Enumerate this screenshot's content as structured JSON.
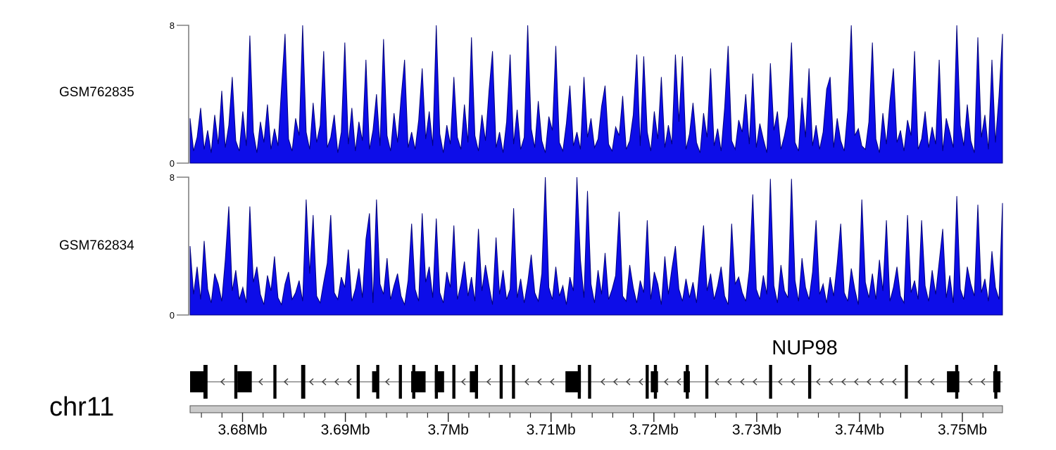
{
  "figure": {
    "chromosome_label": "chr11",
    "gene_label": "NUP98"
  },
  "colors": {
    "signal_fill": "#0d0de8",
    "signal_stroke": "#00007d",
    "axis_line": "#808080",
    "tick_text": "#000000",
    "gene_line": "#888888",
    "arrow": "#3a3a3a",
    "exon": "#000000",
    "ruler_fill": "#cbcbcb",
    "ruler_border": "#555555"
  },
  "axis_mb": {
    "start": 3.6749,
    "end": 3.7539
  },
  "chart_data": [
    {
      "type": "area",
      "series_label": "GSM762835",
      "ylim": [
        0,
        8
      ],
      "ytick_top": "8",
      "ytick_bottom": "0",
      "x_range_mb": [
        3.6749,
        3.7539
      ],
      "values": [
        2.6,
        0.7,
        1.5,
        3.2,
        0.8,
        1.9,
        0.6,
        2.8,
        1.1,
        4.2,
        0.9,
        2.2,
        5.0,
        1.3,
        0.7,
        3.0,
        1.0,
        7.4,
        1.8,
        0.6,
        2.4,
        1.2,
        3.4,
        0.8,
        2.0,
        1.0,
        4.4,
        7.5,
        1.4,
        0.7,
        2.6,
        1.6,
        8.0,
        1.8,
        0.8,
        3.5,
        1.2,
        2.2,
        6.5,
        0.9,
        1.5,
        2.8,
        0.6,
        1.8,
        7.0,
        1.1,
        3.2,
        0.7,
        2.4,
        1.3,
        6.0,
        0.8,
        1.9,
        4.0,
        1.0,
        7.2,
        1.6,
        0.7,
        2.9,
        1.2,
        3.8,
        6.0,
        0.9,
        1.8,
        0.8,
        2.5,
        5.5,
        1.4,
        3.0,
        1.0,
        8.0,
        1.7,
        0.6,
        2.2,
        1.1,
        5.0,
        1.5,
        0.8,
        3.4,
        1.2,
        7.3,
        1.6,
        0.7,
        2.8,
        1.3,
        4.2,
        6.5,
        0.9,
        1.8,
        0.6,
        2.4,
        6.3,
        1.1,
        3.1,
        0.8,
        1.5,
        8.0,
        2.0,
        0.9,
        3.6,
        1.3,
        0.6,
        2.7,
        1.9,
        6.8,
        1.2,
        0.7,
        2.3,
        4.5,
        1.0,
        1.8,
        0.8,
        5.0,
        1.5,
        2.6,
        0.9,
        1.4,
        3.3,
        4.5,
        1.1,
        0.7,
        2.1,
        1.6,
        3.9,
        0.8,
        1.3,
        2.8,
        6.3,
        1.0,
        6.2,
        1.8,
        0.7,
        3.0,
        1.4,
        5.0,
        0.9,
        2.2,
        1.1,
        6.3,
        2.4,
        6.2,
        0.8,
        1.7,
        3.5,
        1.2,
        0.6,
        2.9,
        1.5,
        5.5,
        1.0,
        2.0,
        0.7,
        3.2,
        6.8,
        1.3,
        0.8,
        2.5,
        1.8,
        4.0,
        1.1,
        5.2,
        0.9,
        2.3,
        1.4,
        0.6,
        5.8,
        1.9,
        3.0,
        0.8,
        1.6,
        2.7,
        7.0,
        1.2,
        0.7,
        3.8,
        1.5,
        5.5,
        1.0,
        2.2,
        0.8,
        1.8,
        4.3,
        5.0,
        0.9,
        2.6,
        1.3,
        0.7,
        3.1,
        8.0,
        1.6,
        2.0,
        1.0,
        0.8,
        2.4,
        7.0,
        1.4,
        0.6,
        2.9,
        1.1,
        3.6,
        5.5,
        1.2,
        1.9,
        0.7,
        2.5,
        1.6,
        6.5,
        0.8,
        1.4,
        3.0,
        0.9,
        2.1,
        1.1,
        6.0,
        0.7,
        2.6,
        1.8,
        0.9,
        8.0,
        2.2,
        1.0,
        3.4,
        1.3,
        0.6,
        7.3,
        1.5,
        2.8,
        0.8,
        6.0,
        1.2,
        3.9,
        7.5
      ]
    },
    {
      "type": "area",
      "series_label": "GSM762834",
      "ylim": [
        0,
        8
      ],
      "ytick_top": "8",
      "ytick_bottom": "0",
      "x_range_mb": [
        3.6749,
        3.7539
      ],
      "values": [
        4.0,
        1.2,
        2.8,
        0.9,
        4.3,
        1.5,
        0.7,
        2.4,
        1.8,
        0.8,
        3.2,
        6.3,
        1.4,
        2.6,
        0.9,
        1.6,
        0.7,
        6.3,
        1.9,
        2.8,
        1.2,
        0.6,
        2.3,
        1.4,
        3.4,
        1.0,
        0.6,
        1.8,
        2.5,
        0.9,
        1.3,
        2.0,
        0.8,
        6.7,
        2.4,
        5.8,
        1.1,
        0.7,
        1.9,
        3.0,
        5.8,
        1.3,
        0.9,
        2.2,
        1.6,
        3.8,
        0.8,
        1.5,
        2.7,
        1.0,
        4.4,
        5.9,
        0.7,
        6.7,
        1.8,
        1.2,
        3.3,
        0.9,
        1.7,
        2.4,
        1.1,
        0.6,
        2.0,
        5.3,
        1.5,
        0.8,
        5.9,
        1.9,
        2.8,
        1.0,
        5.6,
        1.3,
        0.7,
        2.5,
        1.6,
        5.2,
        0.9,
        1.8,
        3.1,
        1.1,
        2.2,
        0.8,
        5.0,
        1.4,
        2.9,
        1.7,
        0.6,
        4.5,
        1.2,
        2.6,
        0.9,
        1.5,
        6.2,
        1.0,
        2.1,
        0.7,
        1.9,
        3.5,
        1.3,
        0.8,
        2.4,
        8.0,
        1.6,
        0.9,
        2.8,
        1.1,
        1.7,
        0.6,
        2.2,
        1.4,
        8.0,
        3.2,
        1.0,
        7.2,
        1.8,
        0.7,
        2.6,
        1.2,
        3.6,
        0.9,
        1.5,
        2.3,
        6.0,
        1.1,
        0.8,
        2.9,
        1.6,
        0.7,
        2.0,
        1.3,
        5.5,
        0.9,
        2.5,
        1.8,
        0.6,
        3.4,
        1.2,
        2.7,
        4.0,
        1.5,
        0.8,
        2.1,
        1.0,
        1.9,
        0.7,
        3.0,
        5.2,
        1.4,
        2.4,
        0.9,
        1.7,
        2.8,
        1.1,
        0.6,
        5.3,
        1.8,
        2.2,
        1.3,
        0.8,
        2.6,
        7.0,
        1.5,
        0.9,
        2.3,
        1.2,
        7.9,
        1.7,
        0.7,
        2.9,
        1.4,
        1.0,
        7.9,
        2.0,
        0.8,
        3.3,
        1.6,
        0.9,
        2.5,
        5.5,
        1.2,
        1.8,
        0.7,
        2.2,
        1.1,
        3.0,
        5.3,
        1.3,
        0.8,
        2.7,
        1.5,
        0.6,
        6.7,
        1.9,
        1.0,
        2.4,
        0.9,
        3.2,
        1.4,
        5.5,
        0.8,
        1.6,
        2.8,
        1.1,
        0.7,
        5.8,
        1.3,
        2.0,
        0.9,
        5.5,
        1.7,
        0.8,
        2.6,
        1.2,
        3.1,
        5.0,
        1.0,
        2.3,
        0.7,
        6.9,
        1.5,
        0.9,
        2.8,
        1.8,
        1.1,
        6.4,
        1.3,
        2.1,
        0.8,
        3.7,
        1.6,
        0.9,
        6.5
      ]
    }
  ],
  "gene_track": {
    "gene_name": "NUP98",
    "strand": "-",
    "exons_mb": [
      [
        3.6749,
        3.6762,
        "box"
      ],
      [
        3.6762,
        3.6766,
        "bar"
      ],
      [
        3.6792,
        3.6795,
        "bar"
      ],
      [
        3.6795,
        3.6809,
        "box"
      ],
      [
        3.683,
        3.6833,
        "bar"
      ],
      [
        3.6857,
        3.6861,
        "bar"
      ],
      [
        3.6911,
        3.6914,
        "bar"
      ],
      [
        3.6926,
        3.6932,
        "box"
      ],
      [
        3.693,
        3.6933,
        "bar"
      ],
      [
        3.6952,
        3.6955,
        "bar"
      ],
      [
        3.6964,
        3.6978,
        "box"
      ],
      [
        3.6965,
        3.6968,
        "bar"
      ],
      [
        3.6987,
        3.6996,
        "box"
      ],
      [
        3.6987,
        3.699,
        "bar"
      ],
      [
        3.7004,
        3.7007,
        "bar"
      ],
      [
        3.7021,
        3.7029,
        "box"
      ],
      [
        3.7026,
        3.7029,
        "bar"
      ],
      [
        3.705,
        3.7053,
        "bar"
      ],
      [
        3.7062,
        3.7065,
        "bar"
      ],
      [
        3.7114,
        3.7129,
        "box"
      ],
      [
        3.7126,
        3.7129,
        "bar"
      ],
      [
        3.7136,
        3.7139,
        "bar"
      ],
      [
        3.7192,
        3.7195,
        "bar"
      ],
      [
        3.7197,
        3.7204,
        "box"
      ],
      [
        3.72,
        3.7203,
        "bar"
      ],
      [
        3.7229,
        3.7235,
        "box"
      ],
      [
        3.7231,
        3.7234,
        "bar"
      ],
      [
        3.725,
        3.7253,
        "bar"
      ],
      [
        3.7312,
        3.7315,
        "bar"
      ],
      [
        3.735,
        3.7353,
        "bar"
      ],
      [
        3.7444,
        3.7447,
        "bar"
      ],
      [
        3.7485,
        3.7497,
        "box"
      ],
      [
        3.7493,
        3.7496,
        "bar"
      ],
      [
        3.753,
        3.7537,
        "box"
      ],
      [
        3.7531,
        3.7534,
        "bar"
      ]
    ]
  },
  "ruler": {
    "units": "Mb",
    "minor_step_mb": 0.002,
    "major_ticks": [
      {
        "mb": 3.68,
        "label": "3.68Mb"
      },
      {
        "mb": 3.69,
        "label": "3.69Mb"
      },
      {
        "mb": 3.7,
        "label": "3.7Mb"
      },
      {
        "mb": 3.71,
        "label": "3.71Mb"
      },
      {
        "mb": 3.72,
        "label": "3.72Mb"
      },
      {
        "mb": 3.73,
        "label": "3.73Mb"
      },
      {
        "mb": 3.74,
        "label": "3.74Mb"
      },
      {
        "mb": 3.75,
        "label": "3.75Mb"
      }
    ]
  }
}
